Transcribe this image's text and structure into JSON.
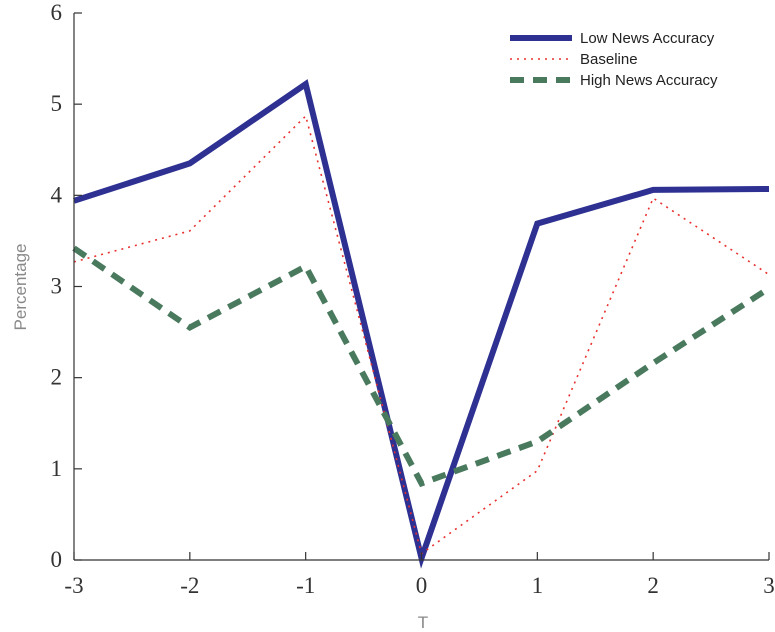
{
  "chart_data": {
    "type": "line",
    "title": "",
    "xlabel": "T",
    "ylabel": "Percentage",
    "xlim": [
      -3,
      3
    ],
    "ylim": [
      0,
      6
    ],
    "x_ticks": [
      "-3",
      "-2",
      "-1",
      "0",
      "1",
      "2",
      "3"
    ],
    "y_ticks": [
      "0",
      "1",
      "2",
      "3",
      "4",
      "5",
      "6"
    ],
    "grid": false,
    "legend_position": "top-right",
    "x": [
      -3,
      -2,
      -1,
      0,
      1,
      2,
      3
    ],
    "series": [
      {
        "name": "Low News Accuracy",
        "values": [
          3.94,
          4.35,
          5.22,
          0.02,
          3.69,
          4.06,
          4.07
        ],
        "color": "#2e3192",
        "style": "solid"
      },
      {
        "name": "Baseline",
        "values": [
          3.27,
          3.61,
          4.87,
          0.07,
          0.98,
          3.97,
          3.13
        ],
        "color": "#e8312f",
        "style": "dotted"
      },
      {
        "name": "High News Accuracy",
        "values": [
          3.42,
          2.55,
          3.22,
          0.84,
          1.3,
          2.16,
          2.98
        ],
        "color": "#4a7a5e",
        "style": "dashed"
      }
    ]
  }
}
